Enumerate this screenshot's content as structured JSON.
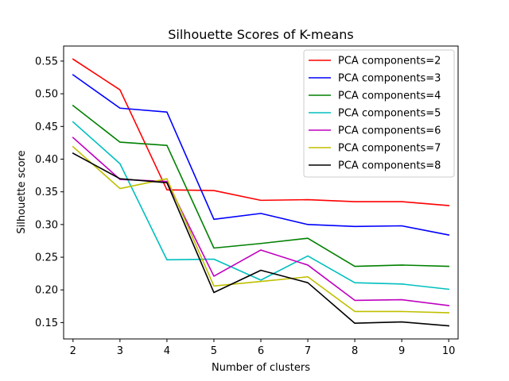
{
  "chart_data": {
    "type": "line",
    "title": "Silhouette Scores of K-means",
    "xlabel": "Number of clusters",
    "ylabel": "Silhouette score",
    "x": [
      2,
      3,
      4,
      5,
      6,
      7,
      8,
      9,
      10
    ],
    "xlim": [
      1.8,
      10.2
    ],
    "ylim": [
      0.125,
      0.573
    ],
    "xticks": [
      2,
      3,
      4,
      5,
      6,
      7,
      8,
      9,
      10
    ],
    "yticks": [
      0.15,
      0.2,
      0.25,
      0.3,
      0.35,
      0.4,
      0.45,
      0.5,
      0.55
    ],
    "ytick_labels": [
      "0.15",
      "0.20",
      "0.25",
      "0.30",
      "0.35",
      "0.40",
      "0.45",
      "0.50",
      "0.55"
    ],
    "grid": false,
    "legend_position": "top-right",
    "series": [
      {
        "name": "PCA components=2",
        "color": "#ff0000",
        "values": [
          0.553,
          0.506,
          0.353,
          0.352,
          0.337,
          0.338,
          0.335,
          0.335,
          0.329
        ]
      },
      {
        "name": "PCA components=3",
        "color": "#0000ff",
        "values": [
          0.529,
          0.478,
          0.472,
          0.308,
          0.317,
          0.3,
          0.297,
          0.298,
          0.284
        ]
      },
      {
        "name": "PCA components=4",
        "color": "#008000",
        "values": [
          0.482,
          0.426,
          0.421,
          0.264,
          0.271,
          0.279,
          0.236,
          0.238,
          0.236
        ]
      },
      {
        "name": "PCA components=5",
        "color": "#00bfbf",
        "values": [
          0.457,
          0.393,
          0.246,
          0.247,
          0.215,
          0.252,
          0.211,
          0.209,
          0.201
        ]
      },
      {
        "name": "PCA components=6",
        "color": "#bf00bf",
        "values": [
          0.433,
          0.369,
          0.366,
          0.221,
          0.261,
          0.238,
          0.184,
          0.185,
          0.176
        ]
      },
      {
        "name": "PCA components=7",
        "color": "#bfbf00",
        "values": [
          0.419,
          0.355,
          0.37,
          0.206,
          0.213,
          0.22,
          0.167,
          0.167,
          0.165
        ]
      },
      {
        "name": "PCA components=8",
        "color": "#000000",
        "values": [
          0.409,
          0.37,
          0.364,
          0.196,
          0.23,
          0.211,
          0.149,
          0.151,
          0.145
        ]
      }
    ]
  }
}
